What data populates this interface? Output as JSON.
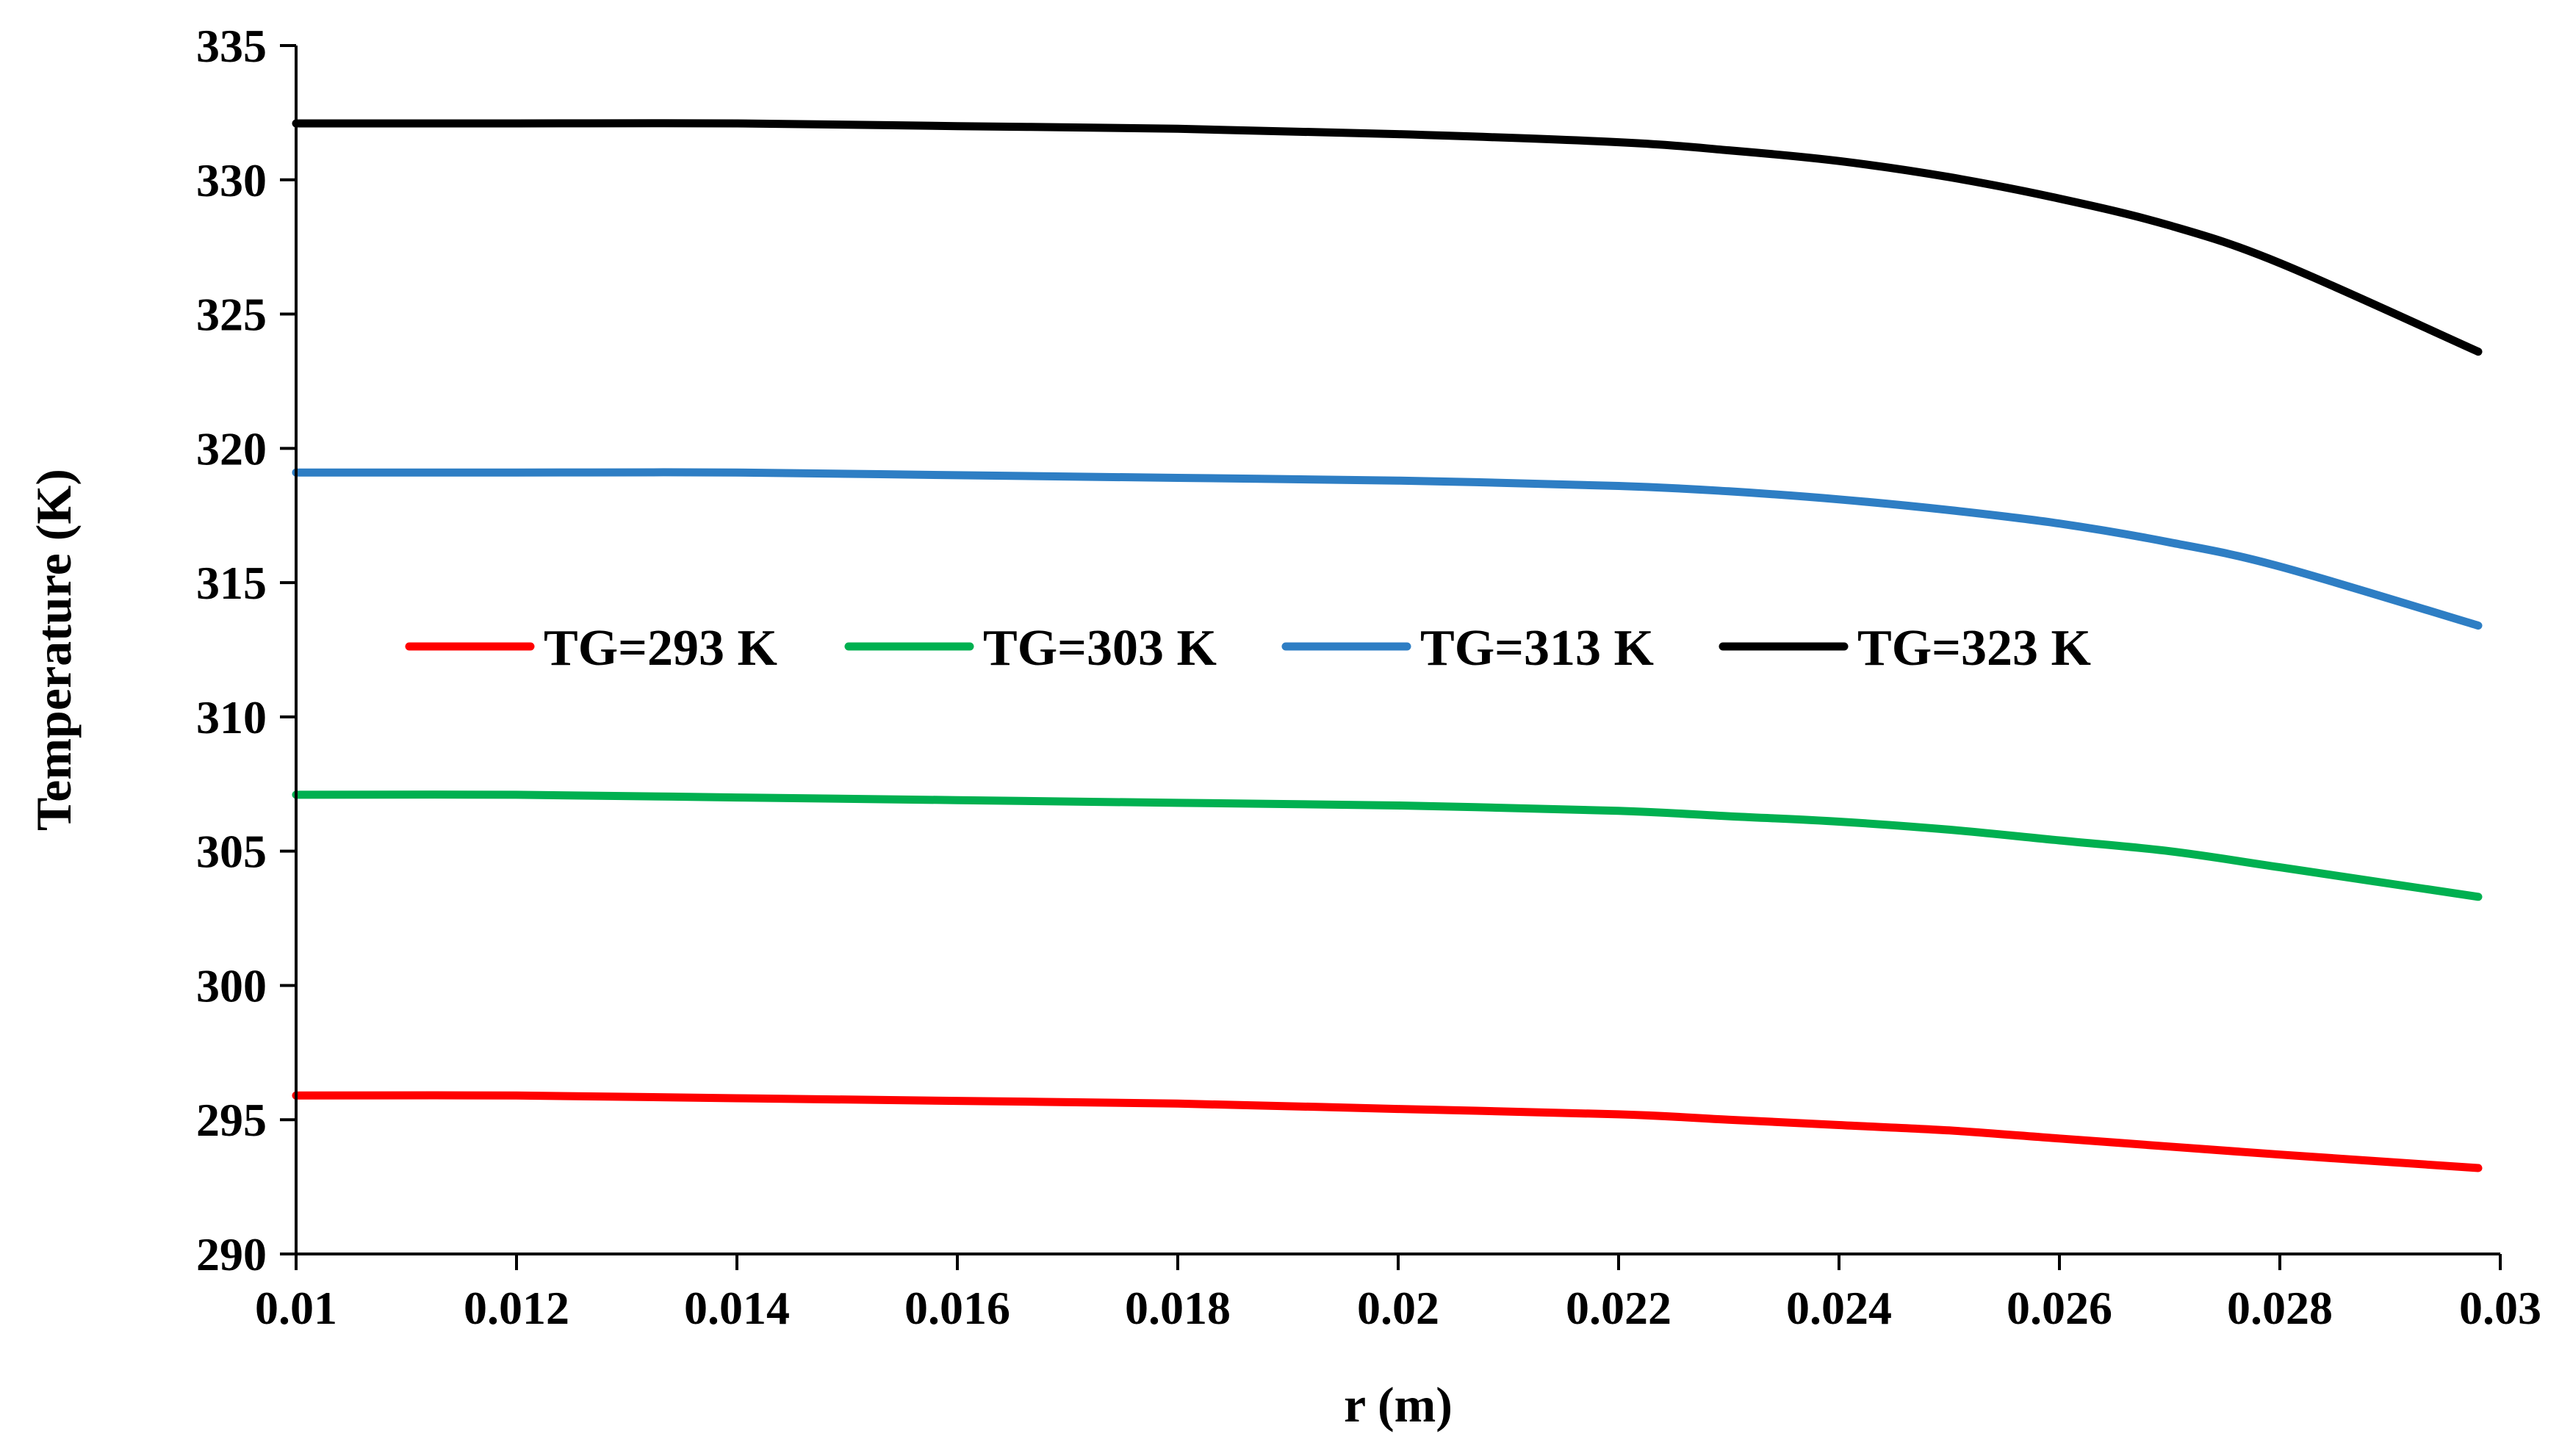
{
  "chart_data": {
    "type": "line",
    "title": "",
    "xlabel": "r (m)",
    "ylabel": "Temperature (K)",
    "xlim": [
      0.01,
      0.03
    ],
    "ylim": [
      290,
      335
    ],
    "x_ticks": [
      "0.01",
      "0.012",
      "0.014",
      "0.016",
      "0.018",
      "0.02",
      "0.022",
      "0.024",
      "0.026",
      "0.028",
      "0.03"
    ],
    "y_ticks": [
      "290",
      "295",
      "300",
      "305",
      "310",
      "315",
      "320",
      "325",
      "330",
      "335"
    ],
    "grid": false,
    "legend_position": "center",
    "x": [
      0.01,
      0.012,
      0.014,
      0.016,
      0.018,
      0.02,
      0.022,
      0.023,
      0.024,
      0.025,
      0.026,
      0.027,
      0.028,
      0.0298
    ],
    "series": [
      {
        "name": "TG=293 K",
        "color": "#ff0000",
        "values": [
          295.9,
          295.9,
          295.8,
          295.7,
          295.6,
          295.4,
          295.2,
          295.0,
          294.8,
          294.6,
          294.3,
          294.0,
          293.7,
          293.2
        ]
      },
      {
        "name": "TG=303 K",
        "color": "#00b050",
        "values": [
          307.1,
          307.1,
          307.0,
          306.9,
          306.8,
          306.7,
          306.5,
          306.3,
          306.1,
          305.8,
          305.4,
          305.0,
          304.4,
          303.3
        ]
      },
      {
        "name": "TG=313 K",
        "color": "#2e7ec4",
        "values": [
          319.1,
          319.1,
          319.1,
          319.0,
          318.9,
          318.8,
          318.6,
          318.4,
          318.1,
          317.7,
          317.2,
          316.5,
          315.6,
          313.4
        ]
      },
      {
        "name": "TG=323 K",
        "color": "#000000",
        "values": [
          332.1,
          332.1,
          332.1,
          332.0,
          331.9,
          331.7,
          331.4,
          331.1,
          330.7,
          330.1,
          329.3,
          328.3,
          326.9,
          323.6
        ]
      }
    ]
  }
}
